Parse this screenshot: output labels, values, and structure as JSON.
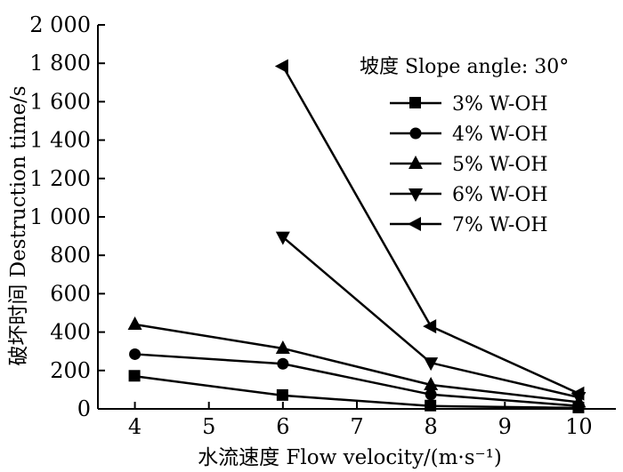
{
  "chart_data": {
    "type": "line",
    "title": "",
    "xlabel": "水流速度 Flow velocity/(m·s⁻¹)",
    "ylabel": "破坏时间 Destruction time/s",
    "xlim": [
      3.5,
      10.5
    ],
    "ylim": [
      0,
      2000
    ],
    "xticks": [
      4,
      5,
      6,
      7,
      8,
      9,
      10
    ],
    "xtick_labels": [
      "4",
      "5",
      "6",
      "7",
      "8",
      "9",
      "10"
    ],
    "yticks": [
      0,
      200,
      400,
      600,
      800,
      1000,
      1200,
      1400,
      1600,
      1800,
      2000
    ],
    "ytick_labels": [
      "0",
      "200",
      "400",
      "600",
      "800",
      "1 000",
      "1 200",
      "1 400",
      "1 600",
      "1 800",
      "2 000"
    ],
    "legend_title": "坡度 Slope angle: 30°",
    "legend_position": "top-right",
    "grid": false,
    "series": [
      {
        "name": "3% W-OH",
        "marker": "square",
        "x": [
          4,
          6,
          8,
          10
        ],
        "values": [
          170,
          70,
          15,
          5
        ]
      },
      {
        "name": "4% W-OH",
        "marker": "circle",
        "x": [
          4,
          6,
          8,
          10
        ],
        "values": [
          285,
          235,
          75,
          15
        ]
      },
      {
        "name": "5% W-OH",
        "marker": "triangle-up",
        "x": [
          4,
          6,
          8,
          10
        ],
        "values": [
          440,
          315,
          125,
          35
        ]
      },
      {
        "name": "6% W-OH",
        "marker": "triangle-down",
        "x": [
          6,
          8,
          10
        ],
        "values": [
          895,
          240,
          60
        ]
      },
      {
        "name": "7% W-OH",
        "marker": "triangle-left",
        "x": [
          6,
          8,
          10
        ],
        "values": [
          1785,
          430,
          80
        ]
      }
    ]
  }
}
